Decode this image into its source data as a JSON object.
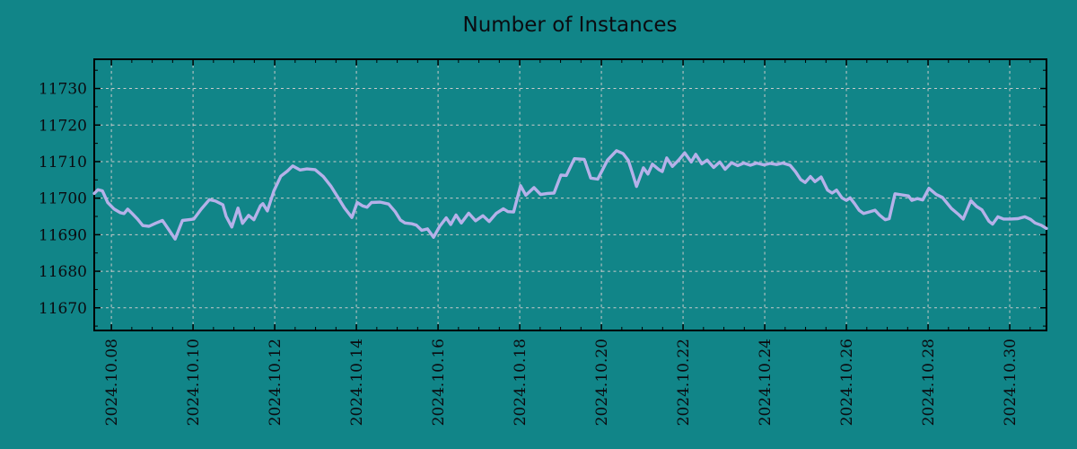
{
  "title": "Number of Instances",
  "colors": {
    "background": "#118588",
    "line": "#b5b1e9",
    "grid": "#c9c9c9",
    "axis": "#000000",
    "text": "#0b0b10"
  },
  "chart_data": {
    "type": "line",
    "title": "Number of Instances",
    "grid": true,
    "legend": false,
    "x_axis": {
      "unit": "days since 2024-10-08 00:00",
      "tick_labels": [
        "2024.10.08",
        "2024.10.10",
        "2024.10.12",
        "2024.10.14",
        "2024.10.16",
        "2024.10.18",
        "2024.10.20",
        "2024.10.22",
        "2024.10.24",
        "2024.10.26",
        "2024.10.28",
        "2024.10.30"
      ],
      "tick_positions_days": [
        0,
        2,
        4,
        6,
        8,
        10,
        12,
        14,
        16,
        18,
        20,
        22
      ],
      "minor_tick_interval_days": 0.5,
      "range_days": [
        -0.42,
        22.9
      ]
    },
    "y_axis": {
      "ticks": [
        11670,
        11680,
        11690,
        11700,
        11710,
        11720,
        11730
      ],
      "minor_tick_interval": 5,
      "range": [
        11663.8,
        11738.0
      ]
    },
    "series": [
      {
        "name": "Number of Instances",
        "color": "#b5b1e9",
        "points": [
          [
            -0.42,
            11701.3
          ],
          [
            -0.33,
            11702.3
          ],
          [
            -0.22,
            11702.0
          ],
          [
            -0.09,
            11698.8
          ],
          [
            0.07,
            11697.0
          ],
          [
            0.22,
            11696.0
          ],
          [
            0.31,
            11695.8
          ],
          [
            0.4,
            11697.0
          ],
          [
            0.51,
            11695.8
          ],
          [
            0.64,
            11694.3
          ],
          [
            0.77,
            11692.5
          ],
          [
            0.92,
            11692.3
          ],
          [
            1.08,
            11693.1
          ],
          [
            1.25,
            11693.9
          ],
          [
            1.41,
            11691.3
          ],
          [
            1.56,
            11688.8
          ],
          [
            1.74,
            11693.9
          ],
          [
            1.89,
            11694.1
          ],
          [
            2.02,
            11694.3
          ],
          [
            2.2,
            11697.0
          ],
          [
            2.4,
            11699.6
          ],
          [
            2.55,
            11699.2
          ],
          [
            2.73,
            11698.2
          ],
          [
            2.81,
            11695.0
          ],
          [
            2.95,
            11692.1
          ],
          [
            3.1,
            11697.3
          ],
          [
            3.21,
            11693.1
          ],
          [
            3.36,
            11695.3
          ],
          [
            3.49,
            11694.1
          ],
          [
            3.65,
            11697.9
          ],
          [
            3.71,
            11698.5
          ],
          [
            3.82,
            11696.5
          ],
          [
            3.98,
            11702.0
          ],
          [
            4.15,
            11706.0
          ],
          [
            4.31,
            11707.4
          ],
          [
            4.44,
            11708.8
          ],
          [
            4.62,
            11707.7
          ],
          [
            4.79,
            11708.0
          ],
          [
            4.99,
            11707.8
          ],
          [
            5.19,
            11705.9
          ],
          [
            5.38,
            11703.2
          ],
          [
            5.56,
            11700.0
          ],
          [
            5.71,
            11697.3
          ],
          [
            5.89,
            11694.7
          ],
          [
            6.02,
            11698.8
          ],
          [
            6.15,
            11697.9
          ],
          [
            6.26,
            11697.5
          ],
          [
            6.37,
            11698.8
          ],
          [
            6.59,
            11698.9
          ],
          [
            6.79,
            11698.4
          ],
          [
            6.95,
            11696.3
          ],
          [
            7.08,
            11694.0
          ],
          [
            7.19,
            11693.2
          ],
          [
            7.36,
            11693.0
          ],
          [
            7.47,
            11692.6
          ],
          [
            7.6,
            11691.2
          ],
          [
            7.74,
            11691.6
          ],
          [
            7.89,
            11689.3
          ],
          [
            8.04,
            11692.3
          ],
          [
            8.2,
            11694.6
          ],
          [
            8.31,
            11692.8
          ],
          [
            8.44,
            11695.4
          ],
          [
            8.57,
            11693.2
          ],
          [
            8.75,
            11695.9
          ],
          [
            8.92,
            11693.8
          ],
          [
            9.1,
            11695.2
          ],
          [
            9.25,
            11693.6
          ],
          [
            9.43,
            11695.9
          ],
          [
            9.6,
            11697.1
          ],
          [
            9.71,
            11696.3
          ],
          [
            9.85,
            11696.2
          ],
          [
            10.02,
            11703.4
          ],
          [
            10.15,
            11700.8
          ],
          [
            10.35,
            11702.9
          ],
          [
            10.51,
            11701.0
          ],
          [
            10.68,
            11701.3
          ],
          [
            10.84,
            11701.4
          ],
          [
            11.01,
            11706.3
          ],
          [
            11.14,
            11706.2
          ],
          [
            11.34,
            11710.8
          ],
          [
            11.58,
            11710.6
          ],
          [
            11.74,
            11705.5
          ],
          [
            11.91,
            11705.2
          ],
          [
            12.15,
            11710.4
          ],
          [
            12.37,
            11713.0
          ],
          [
            12.53,
            11712.2
          ],
          [
            12.66,
            11710.3
          ],
          [
            12.77,
            11706.5
          ],
          [
            12.86,
            11703.2
          ],
          [
            13.03,
            11708.3
          ],
          [
            13.14,
            11706.6
          ],
          [
            13.25,
            11709.3
          ],
          [
            13.41,
            11707.8
          ],
          [
            13.49,
            11707.3
          ],
          [
            13.6,
            11711.0
          ],
          [
            13.74,
            11708.7
          ],
          [
            13.89,
            11710.4
          ],
          [
            14.04,
            11712.4
          ],
          [
            14.2,
            11709.9
          ],
          [
            14.31,
            11712.0
          ],
          [
            14.46,
            11709.4
          ],
          [
            14.59,
            11710.4
          ],
          [
            14.75,
            11708.4
          ],
          [
            14.9,
            11709.9
          ],
          [
            15.03,
            11707.9
          ],
          [
            15.19,
            11709.7
          ],
          [
            15.34,
            11708.9
          ],
          [
            15.49,
            11709.6
          ],
          [
            15.65,
            11709.0
          ],
          [
            15.8,
            11709.6
          ],
          [
            15.98,
            11709.1
          ],
          [
            16.13,
            11709.5
          ],
          [
            16.29,
            11709.2
          ],
          [
            16.44,
            11709.6
          ],
          [
            16.62,
            11709.0
          ],
          [
            16.75,
            11707.3
          ],
          [
            16.88,
            11705.1
          ],
          [
            16.99,
            11704.3
          ],
          [
            17.12,
            11705.9
          ],
          [
            17.23,
            11704.5
          ],
          [
            17.38,
            11705.8
          ],
          [
            17.54,
            11702.2
          ],
          [
            17.65,
            11701.4
          ],
          [
            17.76,
            11702.2
          ],
          [
            17.89,
            11700.1
          ],
          [
            18.0,
            11699.4
          ],
          [
            18.09,
            11700.1
          ],
          [
            18.2,
            11698.5
          ],
          [
            18.31,
            11696.7
          ],
          [
            18.42,
            11695.8
          ],
          [
            18.55,
            11696.2
          ],
          [
            18.7,
            11696.7
          ],
          [
            18.81,
            11695.4
          ],
          [
            18.95,
            11694.1
          ],
          [
            19.05,
            11694.4
          ],
          [
            19.19,
            11701.2
          ],
          [
            19.36,
            11700.9
          ],
          [
            19.52,
            11700.6
          ],
          [
            19.6,
            11699.4
          ],
          [
            19.74,
            11699.9
          ],
          [
            19.87,
            11699.5
          ],
          [
            20.02,
            11702.7
          ],
          [
            20.2,
            11701.0
          ],
          [
            20.35,
            11700.2
          ],
          [
            20.57,
            11697.2
          ],
          [
            20.75,
            11695.5
          ],
          [
            20.86,
            11694.3
          ],
          [
            21.05,
            11699.3
          ],
          [
            21.19,
            11697.7
          ],
          [
            21.32,
            11696.8
          ],
          [
            21.49,
            11693.7
          ],
          [
            21.58,
            11692.9
          ],
          [
            21.71,
            11694.9
          ],
          [
            21.85,
            11694.3
          ],
          [
            22.02,
            11694.3
          ],
          [
            22.2,
            11694.4
          ],
          [
            22.37,
            11694.9
          ],
          [
            22.51,
            11694.2
          ],
          [
            22.62,
            11693.2
          ],
          [
            22.77,
            11692.6
          ],
          [
            22.9,
            11691.7
          ]
        ]
      }
    ]
  }
}
